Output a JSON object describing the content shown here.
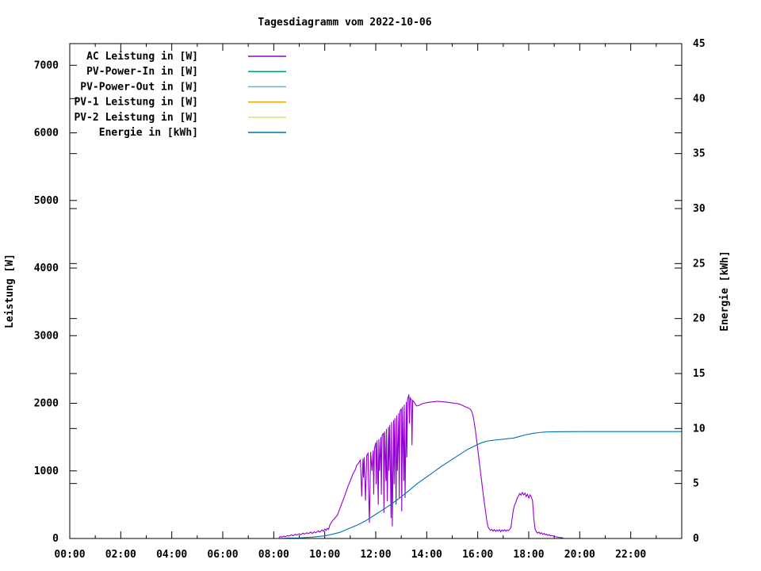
{
  "chart_data": {
    "type": "line",
    "title": "Tagesdiagramm vom 2022-10-06",
    "grid": false,
    "legend_position": "top-left-inside",
    "x_axis": {
      "label": "",
      "unit": "time",
      "range_hours": [
        0,
        24
      ],
      "major_tick_hours": 2,
      "minor_tick_hours": 1,
      "tick_labels": [
        "00:00",
        "02:00",
        "04:00",
        "06:00",
        "08:00",
        "10:00",
        "12:00",
        "14:00",
        "16:00",
        "18:00",
        "20:00",
        "22:00"
      ]
    },
    "y_axis": {
      "label": "Leistung [W]",
      "range": [
        0,
        7320
      ],
      "ticks": [
        0,
        1000,
        2000,
        3000,
        4000,
        5000,
        6000,
        7000
      ]
    },
    "y2_axis": {
      "label": "Energie [kWh]",
      "range": [
        0,
        45
      ],
      "ticks": [
        0,
        5,
        10,
        15,
        20,
        25,
        30,
        35,
        40,
        45
      ]
    },
    "legend": [
      {
        "label": "AC Leistung in [W]",
        "color": "#9400d3"
      },
      {
        "label": "PV-Power-In in [W]",
        "color": "#009e73"
      },
      {
        "label": "PV-Power-Out in [W]",
        "color": "#56b4e9"
      },
      {
        "label": "PV-1 Leistung in [W]",
        "color": "#e69f00"
      },
      {
        "label": "PV-2 Leistung in [W]",
        "color": "#f0e442"
      },
      {
        "label": "Energie in [kWh]",
        "color": "#0072b2"
      }
    ],
    "series": [
      {
        "id": "ac-leistung",
        "name": "AC Leistung in [W]",
        "color": "#9400d3",
        "axis": "y1",
        "points": [
          [
            8.2,
            10
          ],
          [
            8.25,
            30
          ],
          [
            8.3,
            20
          ],
          [
            8.4,
            35
          ],
          [
            8.45,
            25
          ],
          [
            8.55,
            45
          ],
          [
            8.6,
            35
          ],
          [
            8.7,
            55
          ],
          [
            8.75,
            40
          ],
          [
            8.85,
            60
          ],
          [
            8.9,
            50
          ],
          [
            9.0,
            70
          ],
          [
            9.05,
            55
          ],
          [
            9.15,
            80
          ],
          [
            9.2,
            65
          ],
          [
            9.3,
            85
          ],
          [
            9.35,
            70
          ],
          [
            9.45,
            95
          ],
          [
            9.5,
            75
          ],
          [
            9.6,
            100
          ],
          [
            9.65,
            85
          ],
          [
            9.75,
            115
          ],
          [
            9.8,
            95
          ],
          [
            9.9,
            125
          ],
          [
            9.95,
            105
          ],
          [
            10.0,
            140
          ],
          [
            10.05,
            120
          ],
          [
            10.1,
            150
          ],
          [
            10.15,
            135
          ],
          [
            10.2,
            200
          ],
          [
            10.3,
            260
          ],
          [
            10.4,
            300
          ],
          [
            10.5,
            350
          ],
          [
            10.6,
            450
          ],
          [
            10.7,
            550
          ],
          [
            10.8,
            650
          ],
          [
            10.9,
            760
          ],
          [
            11.0,
            850
          ],
          [
            11.1,
            950
          ],
          [
            11.2,
            1020
          ],
          [
            11.25,
            1080
          ],
          [
            11.3,
            1100
          ],
          [
            11.35,
            1130
          ],
          [
            11.4,
            1160
          ],
          [
            11.45,
            620
          ],
          [
            11.5,
            1180
          ],
          [
            11.52,
            900
          ],
          [
            11.55,
            1200
          ],
          [
            11.6,
            560
          ],
          [
            11.65,
            1230
          ],
          [
            11.7,
            1260
          ],
          [
            11.72,
            700
          ],
          [
            11.75,
            230
          ],
          [
            11.8,
            1280
          ],
          [
            11.85,
            1000
          ],
          [
            11.9,
            1300
          ],
          [
            11.92,
            650
          ],
          [
            11.95,
            1330
          ],
          [
            12.0,
            1420
          ],
          [
            12.02,
            800
          ],
          [
            12.05,
            1450
          ],
          [
            12.1,
            500
          ],
          [
            12.12,
            1470
          ],
          [
            12.15,
            1000
          ],
          [
            12.2,
            1500
          ],
          [
            12.22,
            650
          ],
          [
            12.25,
            1520
          ],
          [
            12.3,
            1560
          ],
          [
            12.32,
            380
          ],
          [
            12.35,
            1580
          ],
          [
            12.4,
            850
          ],
          [
            12.42,
            1620
          ],
          [
            12.45,
            550
          ],
          [
            12.5,
            1650
          ],
          [
            12.52,
            1000
          ],
          [
            12.55,
            1680
          ],
          [
            12.6,
            300
          ],
          [
            12.62,
            1720
          ],
          [
            12.65,
            180
          ],
          [
            12.7,
            1750
          ],
          [
            12.72,
            800
          ],
          [
            12.75,
            1780
          ],
          [
            12.8,
            500
          ],
          [
            12.82,
            1820
          ],
          [
            12.85,
            1000
          ],
          [
            12.9,
            1850
          ],
          [
            12.92,
            600
          ],
          [
            12.95,
            1880
          ],
          [
            13.0,
            1920
          ],
          [
            13.02,
            400
          ],
          [
            13.05,
            1950
          ],
          [
            13.1,
            850
          ],
          [
            13.12,
            1980
          ],
          [
            13.15,
            600
          ],
          [
            13.2,
            2020
          ],
          [
            13.22,
            1200
          ],
          [
            13.25,
            2060
          ],
          [
            13.3,
            2130
          ],
          [
            13.32,
            1700
          ],
          [
            13.35,
            2080
          ],
          [
            13.4,
            2050
          ],
          [
            13.42,
            1380
          ],
          [
            13.45,
            2040
          ],
          [
            13.5,
            2020
          ],
          [
            13.55,
            1990
          ],
          [
            13.6,
            1960
          ],
          [
            13.7,
            1970
          ],
          [
            13.8,
            1990
          ],
          [
            13.9,
            2000
          ],
          [
            14.0,
            2010
          ],
          [
            14.2,
            2020
          ],
          [
            14.4,
            2030
          ],
          [
            14.6,
            2025
          ],
          [
            14.8,
            2015
          ],
          [
            15.0,
            2005
          ],
          [
            15.1,
            2000
          ],
          [
            15.2,
            1995
          ],
          [
            15.3,
            1985
          ],
          [
            15.4,
            1970
          ],
          [
            15.5,
            1950
          ],
          [
            15.6,
            1935
          ],
          [
            15.7,
            1915
          ],
          [
            15.75,
            1890
          ],
          [
            15.8,
            1840
          ],
          [
            15.85,
            1750
          ],
          [
            15.9,
            1620
          ],
          [
            16.0,
            1320
          ],
          [
            16.1,
            1010
          ],
          [
            16.2,
            700
          ],
          [
            16.3,
            420
          ],
          [
            16.35,
            280
          ],
          [
            16.4,
            180
          ],
          [
            16.45,
            140
          ],
          [
            16.5,
            120
          ],
          [
            16.55,
            135
          ],
          [
            16.6,
            110
          ],
          [
            16.65,
            130
          ],
          [
            16.7,
            105
          ],
          [
            16.75,
            125
          ],
          [
            16.8,
            110
          ],
          [
            16.85,
            130
          ],
          [
            16.9,
            100
          ],
          [
            16.95,
            125
          ],
          [
            17.0,
            110
          ],
          [
            17.05,
            130
          ],
          [
            17.1,
            105
          ],
          [
            17.15,
            125
          ],
          [
            17.2,
            115
          ],
          [
            17.25,
            135
          ],
          [
            17.3,
            160
          ],
          [
            17.35,
            300
          ],
          [
            17.4,
            430
          ],
          [
            17.45,
            500
          ],
          [
            17.5,
            540
          ],
          [
            17.55,
            600
          ],
          [
            17.6,
            630
          ],
          [
            17.65,
            665
          ],
          [
            17.7,
            640
          ],
          [
            17.75,
            680
          ],
          [
            17.8,
            645
          ],
          [
            17.85,
            670
          ],
          [
            17.9,
            620
          ],
          [
            17.95,
            655
          ],
          [
            18.0,
            600
          ],
          [
            18.05,
            645
          ],
          [
            18.1,
            615
          ],
          [
            18.15,
            560
          ],
          [
            18.2,
            300
          ],
          [
            18.25,
            140
          ],
          [
            18.3,
            100
          ],
          [
            18.35,
            80
          ],
          [
            18.4,
            95
          ],
          [
            18.45,
            70
          ],
          [
            18.5,
            85
          ],
          [
            18.55,
            60
          ],
          [
            18.6,
            75
          ],
          [
            18.65,
            55
          ],
          [
            18.7,
            65
          ],
          [
            18.75,
            45
          ],
          [
            18.8,
            55
          ],
          [
            18.85,
            40
          ],
          [
            18.9,
            45
          ],
          [
            19.0,
            30
          ],
          [
            19.1,
            22
          ],
          [
            19.2,
            15
          ],
          [
            19.3,
            12
          ],
          [
            19.35,
            10
          ]
        ]
      },
      {
        "id": "pv-power-in",
        "name": "PV-Power-In in [W]",
        "color": "#009e73",
        "axis": "y1",
        "points": []
      },
      {
        "id": "pv-power-out",
        "name": "PV-Power-Out in [W]",
        "color": "#56b4e9",
        "axis": "y1",
        "points": []
      },
      {
        "id": "pv-1",
        "name": "PV-1 Leistung in [W]",
        "color": "#e69f00",
        "axis": "y1",
        "points": []
      },
      {
        "id": "pv-2",
        "name": "PV-2 Leistung in [W]",
        "color": "#f0e442",
        "axis": "y1",
        "points": []
      },
      {
        "id": "energie",
        "name": "Energie in [kWh]",
        "color": "#0072b2",
        "axis": "y2",
        "points": [
          [
            8.2,
            0.0
          ],
          [
            8.5,
            0.02
          ],
          [
            9.0,
            0.05
          ],
          [
            9.5,
            0.12
          ],
          [
            10.0,
            0.24
          ],
          [
            10.3,
            0.38
          ],
          [
            10.6,
            0.56
          ],
          [
            11.0,
            0.95
          ],
          [
            11.3,
            1.25
          ],
          [
            11.6,
            1.6
          ],
          [
            12.0,
            2.2
          ],
          [
            12.3,
            2.65
          ],
          [
            12.6,
            3.1
          ],
          [
            13.0,
            3.8
          ],
          [
            13.3,
            4.35
          ],
          [
            13.6,
            4.95
          ],
          [
            14.0,
            5.6
          ],
          [
            14.3,
            6.1
          ],
          [
            14.6,
            6.6
          ],
          [
            15.0,
            7.2
          ],
          [
            15.3,
            7.65
          ],
          [
            15.6,
            8.1
          ],
          [
            16.0,
            8.55
          ],
          [
            16.2,
            8.75
          ],
          [
            16.4,
            8.87
          ],
          [
            16.6,
            8.93
          ],
          [
            16.8,
            8.98
          ],
          [
            17.0,
            9.03
          ],
          [
            17.2,
            9.08
          ],
          [
            17.4,
            9.13
          ],
          [
            17.6,
            9.25
          ],
          [
            17.8,
            9.38
          ],
          [
            18.0,
            9.48
          ],
          [
            18.2,
            9.57
          ],
          [
            18.4,
            9.63
          ],
          [
            18.6,
            9.68
          ],
          [
            18.8,
            9.7
          ],
          [
            19.0,
            9.71
          ],
          [
            20.0,
            9.72
          ],
          [
            24.0,
            9.72
          ]
        ]
      }
    ]
  }
}
